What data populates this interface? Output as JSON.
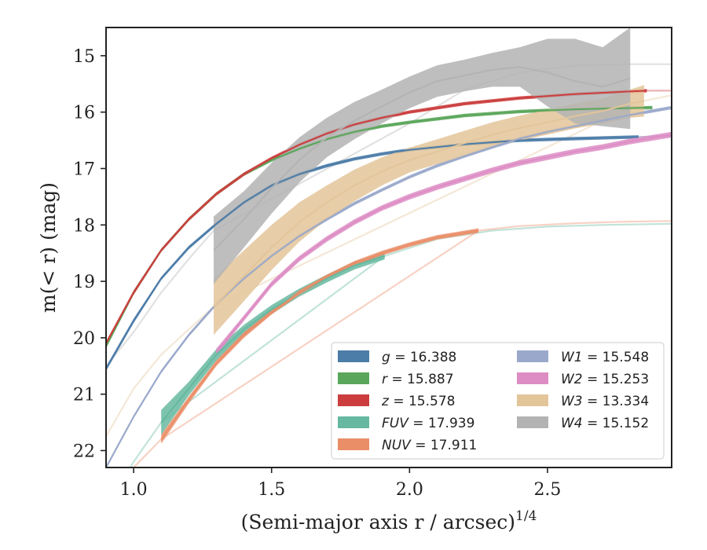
{
  "chart_data": {
    "type": "line",
    "xlabel": "(Semi-major axis r / arcsec)",
    "xlabel_sup": "1/4",
    "ylabel": "m(< r) (mag)",
    "xlim": [
      0.9,
      2.95
    ],
    "ylim": [
      22.3,
      14.5
    ],
    "y_inverted": true,
    "grid": false,
    "legend_position": "lower-right",
    "x_ticks": [
      1.0,
      1.5,
      2.0,
      2.5
    ],
    "x_tick_labels": [
      "1.0",
      "1.5",
      "2.0",
      "2.5"
    ],
    "y_ticks": [
      15,
      16,
      17,
      18,
      19,
      20,
      21,
      22
    ],
    "y_tick_labels": [
      "15",
      "16",
      "17",
      "18",
      "19",
      "20",
      "21",
      "22"
    ],
    "series": [
      {
        "name": "g",
        "legend_value": "16.388",
        "color": "#4c7ca8",
        "x": [
          0.9,
          1.0,
          1.1,
          1.2,
          1.3,
          1.4,
          1.5,
          1.6,
          1.7,
          1.8,
          1.9,
          2.0,
          2.2,
          2.4,
          2.6,
          2.83
        ],
        "y": [
          20.55,
          19.7,
          18.95,
          18.4,
          17.98,
          17.6,
          17.3,
          17.1,
          16.95,
          16.83,
          16.74,
          16.67,
          16.57,
          16.5,
          16.47,
          16.44
        ],
        "band": [
          0.04,
          0.04,
          0.03,
          0.03,
          0.03,
          0.03,
          0.03,
          0.03,
          0.03,
          0.03,
          0.03,
          0.03,
          0.03,
          0.03,
          0.03,
          0.03
        ],
        "faint_x": [
          2.83,
          2.95
        ],
        "faint_y": [
          16.44,
          16.42
        ]
      },
      {
        "name": "r",
        "legend_value": "15.887",
        "color": "#5aa65a",
        "x": [
          0.9,
          1.0,
          1.1,
          1.2,
          1.3,
          1.4,
          1.5,
          1.6,
          1.7,
          1.8,
          1.9,
          2.0,
          2.2,
          2.4,
          2.6,
          2.88
        ],
        "y": [
          20.15,
          19.2,
          18.45,
          17.9,
          17.45,
          17.1,
          16.85,
          16.65,
          16.48,
          16.35,
          16.25,
          16.18,
          16.06,
          15.99,
          15.95,
          15.92
        ],
        "band": [
          0.04,
          0.04,
          0.03,
          0.03,
          0.03,
          0.03,
          0.03,
          0.03,
          0.03,
          0.03,
          0.03,
          0.03,
          0.03,
          0.03,
          0.03,
          0.03
        ],
        "faint_x": [],
        "faint_y": []
      },
      {
        "name": "z",
        "legend_value": "15.578",
        "color": "#cc3e3e",
        "x": [
          0.9,
          1.0,
          1.1,
          1.2,
          1.3,
          1.4,
          1.5,
          1.6,
          1.7,
          1.8,
          1.9,
          2.0,
          2.2,
          2.4,
          2.6,
          2.86
        ],
        "y": [
          20.1,
          19.2,
          18.45,
          17.9,
          17.45,
          17.1,
          16.82,
          16.58,
          16.38,
          16.22,
          16.1,
          16.0,
          15.85,
          15.75,
          15.68,
          15.62
        ],
        "band": [
          0.04,
          0.04,
          0.03,
          0.03,
          0.03,
          0.03,
          0.03,
          0.03,
          0.03,
          0.03,
          0.03,
          0.03,
          0.03,
          0.03,
          0.03,
          0.03
        ],
        "faint_x": [
          2.86,
          2.95
        ],
        "faint_y": [
          15.62,
          15.62
        ]
      },
      {
        "name": "FUV",
        "legend_value": "17.939",
        "color": "#66b8a0",
        "x": [
          1.1,
          1.2,
          1.3,
          1.4,
          1.5,
          1.6,
          1.7,
          1.8,
          1.91
        ],
        "y": [
          21.5,
          20.9,
          20.3,
          19.85,
          19.5,
          19.2,
          18.95,
          18.72,
          18.55
        ],
        "band": [
          0.22,
          0.12,
          0.1,
          0.08,
          0.08,
          0.07,
          0.07,
          0.07,
          0.06
        ],
        "faint_x": [
          0.9,
          1.0,
          1.1,
          1.91,
          2.1,
          2.3,
          2.5,
          2.7,
          2.95
        ],
        "faint_y": [
          23.0,
          22.2,
          21.5,
          18.55,
          18.25,
          18.1,
          18.03,
          18.0,
          17.98
        ]
      },
      {
        "name": "NUV",
        "legend_value": "17.911",
        "color": "#ea8e68",
        "x": [
          1.1,
          1.2,
          1.3,
          1.4,
          1.5,
          1.6,
          1.7,
          1.8,
          1.9,
          2.0,
          2.1,
          2.25
        ],
        "y": [
          21.8,
          21.1,
          20.45,
          19.95,
          19.55,
          19.2,
          18.92,
          18.68,
          18.5,
          18.35,
          18.22,
          18.1
        ],
        "band": [
          0.08,
          0.06,
          0.05,
          0.05,
          0.04,
          0.04,
          0.04,
          0.04,
          0.04,
          0.04,
          0.04,
          0.04
        ],
        "faint_x": [
          0.9,
          1.0,
          1.1,
          2.25,
          2.4,
          2.6,
          2.8,
          2.95
        ],
        "faint_y": [
          23.0,
          22.3,
          21.8,
          18.1,
          18.02,
          17.97,
          17.94,
          17.93
        ]
      },
      {
        "name": "W1",
        "legend_value": "15.548",
        "color": "#9aa9cb",
        "x": [
          0.9,
          1.0,
          1.1,
          1.2,
          1.3,
          1.4,
          1.5,
          1.6,
          1.7,
          1.8,
          1.9,
          2.0,
          2.1,
          2.2,
          2.3,
          2.4,
          2.5,
          2.6,
          2.7,
          2.8,
          2.95
        ],
        "y": [
          22.3,
          21.4,
          20.6,
          19.95,
          19.4,
          18.95,
          18.55,
          18.2,
          17.9,
          17.62,
          17.38,
          17.15,
          16.95,
          16.78,
          16.62,
          16.47,
          16.35,
          16.25,
          16.15,
          16.05,
          15.92
        ],
        "band": [
          0.03,
          0.03,
          0.03,
          0.03,
          0.03,
          0.03,
          0.03,
          0.03,
          0.03,
          0.03,
          0.03,
          0.03,
          0.03,
          0.03,
          0.03,
          0.03,
          0.03,
          0.03,
          0.03,
          0.03,
          0.03
        ],
        "faint_x": [],
        "faint_y": []
      },
      {
        "name": "W2",
        "legend_value": "15.253",
        "color": "#dd8cc4",
        "x": [
          1.3,
          1.4,
          1.5,
          1.6,
          1.7,
          1.8,
          1.9,
          2.0,
          2.1,
          2.2,
          2.3,
          2.4,
          2.5,
          2.6,
          2.7,
          2.8,
          2.95
        ],
        "y": [
          20.25,
          19.65,
          19.05,
          18.6,
          18.25,
          17.95,
          17.7,
          17.5,
          17.33,
          17.18,
          17.03,
          16.9,
          16.8,
          16.7,
          16.62,
          16.52,
          16.4
        ],
        "band": [
          0.06,
          0.05,
          0.05,
          0.05,
          0.05,
          0.05,
          0.05,
          0.05,
          0.05,
          0.05,
          0.05,
          0.05,
          0.05,
          0.05,
          0.05,
          0.05,
          0.05
        ],
        "faint_x": [],
        "faint_y": []
      },
      {
        "name": "W3",
        "legend_value": "13.334",
        "color": "#e3c59a",
        "x": [
          1.29,
          1.4,
          1.5,
          1.6,
          1.7,
          1.8,
          1.9,
          2.0,
          2.1,
          2.2,
          2.3,
          2.4,
          2.5,
          2.6,
          2.7,
          2.8,
          2.85
        ],
        "y": [
          19.45,
          18.9,
          18.4,
          17.95,
          17.6,
          17.3,
          17.05,
          16.85,
          16.7,
          16.55,
          16.4,
          16.28,
          16.18,
          16.07,
          15.98,
          15.85,
          15.8
        ],
        "band": [
          0.5,
          0.45,
          0.4,
          0.35,
          0.3,
          0.28,
          0.25,
          0.22,
          0.22,
          0.22,
          0.22,
          0.22,
          0.22,
          0.22,
          0.22,
          0.25,
          0.28
        ],
        "faint_x": [
          0.9,
          1.0,
          1.1,
          1.2,
          1.29,
          2.85,
          2.95
        ],
        "faint_y": [
          21.75,
          20.9,
          20.3,
          19.85,
          19.45,
          15.8,
          15.7
        ]
      },
      {
        "name": "W4",
        "legend_value": "15.152",
        "color": "#b3b3b3",
        "x": [
          1.29,
          1.4,
          1.5,
          1.6,
          1.7,
          1.8,
          1.9,
          2.0,
          2.1,
          2.2,
          2.3,
          2.4,
          2.5,
          2.6,
          2.7,
          2.8
        ],
        "y": [
          18.45,
          17.9,
          17.35,
          16.85,
          16.45,
          16.15,
          15.9,
          15.65,
          15.45,
          15.35,
          15.25,
          15.2,
          15.3,
          15.45,
          15.55,
          15.4
        ],
        "band": [
          0.6,
          0.5,
          0.45,
          0.4,
          0.35,
          0.33,
          0.3,
          0.28,
          0.28,
          0.28,
          0.3,
          0.35,
          0.6,
          0.75,
          0.7,
          0.9
        ],
        "faint_x": [
          0.9,
          1.0,
          1.1,
          1.2,
          1.29,
          2.0,
          2.2,
          2.4,
          2.6,
          2.8,
          2.95
        ],
        "faint_y": [
          20.5,
          19.9,
          19.2,
          18.6,
          18.1,
          16.2,
          15.6,
          15.3,
          15.17,
          15.15,
          15.15
        ]
      }
    ]
  }
}
